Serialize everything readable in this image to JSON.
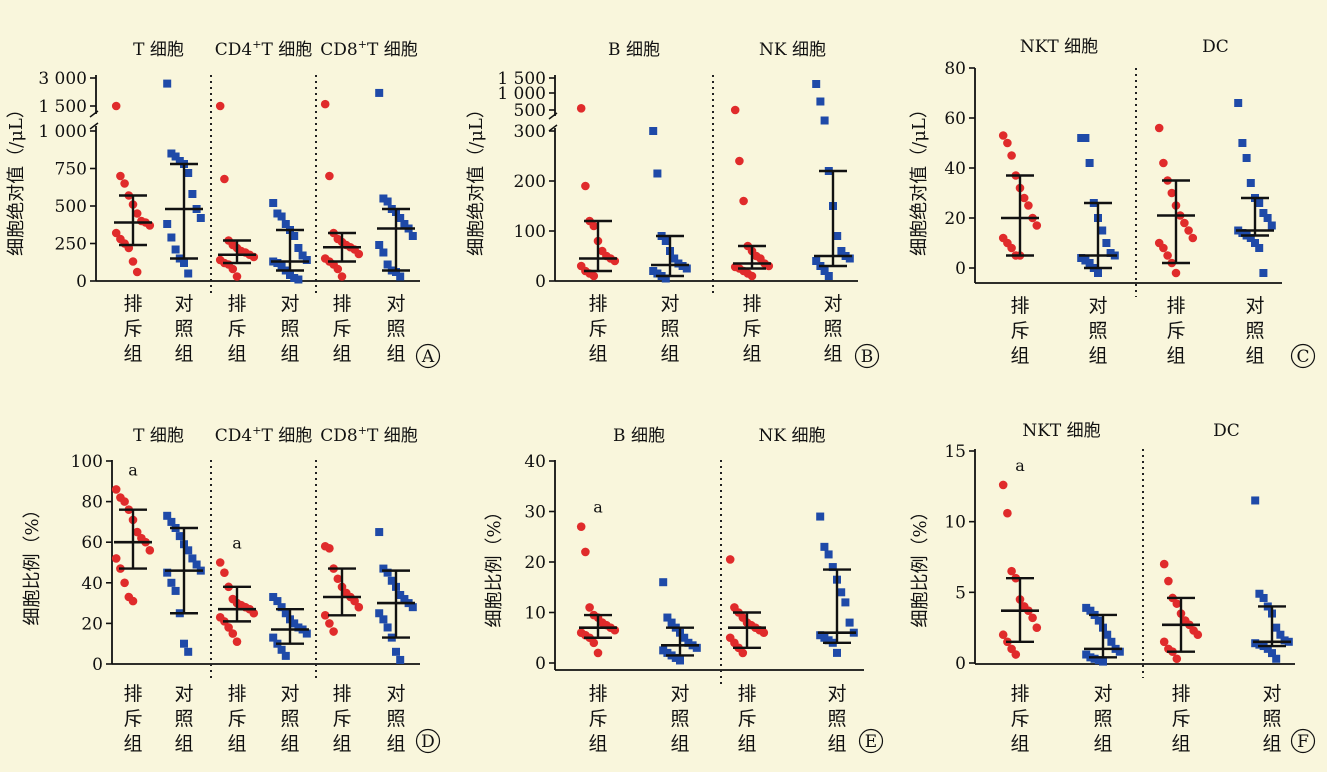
{
  "figure": {
    "background": "#f9f6dc",
    "colors": {
      "排斥组": "#e02b2b",
      "对照组": "#1f4aa8",
      "bars": "#111111"
    },
    "note": ""
  },
  "chart_data": [
    {
      "id": "A",
      "panel_label": "A",
      "type": "scatter",
      "ylabel": "细胞绝对值（/μL）",
      "axis_break": true,
      "yticks": [
        "0",
        "250",
        "500",
        "750",
        "1 000",
        "1 500",
        "3 000"
      ],
      "sections": [
        "T 细胞",
        "CD4⁺T 细胞",
        "CD8⁺T 细胞"
      ],
      "groups": [
        {
          "category": "排斥组",
          "section": "T 细胞",
          "median": 390,
          "q1": 240,
          "q3": 570,
          "points": [
            1500,
            700,
            650,
            570,
            510,
            450,
            400,
            390,
            370,
            320,
            280,
            250,
            220,
            130,
            60
          ]
        },
        {
          "category": "对照组",
          "section": "T 细胞",
          "median": 480,
          "q1": 150,
          "q3": 780,
          "points": [
            2700,
            850,
            830,
            800,
            780,
            720,
            580,
            480,
            420,
            380,
            290,
            210,
            150,
            120,
            50
          ]
        },
        {
          "category": "排斥组",
          "section": "CD4⁺T 细胞",
          "median": 175,
          "q1": 120,
          "q3": 270,
          "points": [
            1500,
            680,
            270,
            240,
            220,
            200,
            190,
            175,
            160,
            140,
            120,
            110,
            80,
            30
          ]
        },
        {
          "category": "对照组",
          "section": "CD4⁺T 细胞",
          "median": 130,
          "q1": 70,
          "q3": 340,
          "points": [
            520,
            450,
            430,
            380,
            340,
            300,
            220,
            170,
            140,
            130,
            120,
            100,
            70,
            40,
            20,
            10
          ]
        },
        {
          "category": "排斥组",
          "section": "CD8⁺T 细胞",
          "median": 225,
          "q1": 130,
          "q3": 320,
          "points": [
            1600,
            700,
            320,
            280,
            260,
            240,
            225,
            210,
            180,
            150,
            130,
            110,
            80,
            30
          ]
        },
        {
          "category": "对照组",
          "section": "CD8⁺T 细胞",
          "median": 350,
          "q1": 70,
          "q3": 480,
          "points": [
            2200,
            550,
            530,
            480,
            460,
            420,
            380,
            350,
            300,
            240,
            190,
            110,
            70,
            60,
            30
          ]
        }
      ]
    },
    {
      "id": "B",
      "panel_label": "B",
      "type": "scatter",
      "ylabel": "细胞绝对值（/μL）",
      "axis_break": true,
      "yticks": [
        "0",
        "100",
        "200",
        "300",
        "500",
        "1 000",
        "1 500"
      ],
      "sections": [
        "B 细胞",
        "NK 细胞"
      ],
      "groups": [
        {
          "category": "排斥组",
          "section": "B 细胞",
          "median": 45,
          "q1": 20,
          "q3": 120,
          "points": [
            550,
            190,
            120,
            110,
            80,
            60,
            50,
            45,
            40,
            30,
            20,
            15,
            10
          ]
        },
        {
          "category": "对照组",
          "section": "B 细胞",
          "median": 32,
          "q1": 10,
          "q3": 90,
          "points": [
            300,
            215,
            90,
            80,
            60,
            45,
            35,
            30,
            25,
            20,
            15,
            10,
            5
          ]
        },
        {
          "category": "排斥组",
          "section": "NK 细胞",
          "median": 35,
          "q1": 25,
          "q3": 70,
          "points": [
            500,
            240,
            160,
            70,
            60,
            50,
            45,
            35,
            30,
            28,
            25,
            20,
            15,
            10
          ]
        },
        {
          "category": "对照组",
          "section": "NK 细胞",
          "median": 50,
          "q1": 30,
          "q3": 220,
          "points": [
            1300,
            750,
            400,
            220,
            150,
            90,
            60,
            50,
            45,
            40,
            30,
            20,
            10
          ]
        }
      ]
    },
    {
      "id": "C",
      "panel_label": "C",
      "type": "scatter",
      "ylabel": "细胞绝对值（/μL）",
      "axis_break": false,
      "ylim": [
        -5,
        80
      ],
      "yticks": [
        "0",
        "20",
        "40",
        "60",
        "80"
      ],
      "sections": [
        "NKT 细胞",
        "DC"
      ],
      "groups": [
        {
          "category": "排斥组",
          "section": "NKT 细胞",
          "median": 20,
          "q1": 5,
          "q3": 37,
          "points": [
            53,
            50,
            45,
            37,
            32,
            28,
            25,
            20,
            17,
            12,
            10,
            8,
            5,
            5
          ]
        },
        {
          "category": "对照组",
          "section": "NKT 细胞",
          "median": 5,
          "q1": 0,
          "q3": 26,
          "points": [
            52,
            52,
            42,
            26,
            20,
            15,
            10,
            6,
            5,
            4,
            3,
            2,
            0,
            -2
          ]
        },
        {
          "category": "排斥组",
          "section": "DC",
          "median": 21,
          "q1": 2,
          "q3": 35,
          "points": [
            56,
            42,
            35,
            30,
            25,
            21,
            18,
            15,
            12,
            10,
            8,
            5,
            2,
            -2
          ]
        },
        {
          "category": "对照组",
          "section": "DC",
          "median": 15,
          "q1": 13,
          "q3": 28,
          "points": [
            66,
            50,
            44,
            34,
            28,
            26,
            22,
            20,
            17,
            15,
            14,
            13,
            12,
            10,
            8,
            -2
          ]
        }
      ]
    },
    {
      "id": "D",
      "panel_label": "D",
      "type": "scatter",
      "ylabel": "细胞比例（%）",
      "axis_break": false,
      "ylim": [
        0,
        100
      ],
      "yticks": [
        "0",
        "20",
        "40",
        "60",
        "80",
        "100"
      ],
      "sections": [
        "T 细胞",
        "CD4⁺T 细胞",
        "CD8⁺T 细胞"
      ],
      "annotations": [
        {
          "section": "T 细胞",
          "text": "a"
        },
        {
          "section": "CD4⁺T 细胞",
          "text": "a"
        }
      ],
      "groups": [
        {
          "category": "排斥组",
          "section": "T 细胞",
          "median": 60,
          "q1": 47,
          "q3": 76,
          "points": [
            86,
            82,
            80,
            76,
            71,
            65,
            62,
            60,
            56,
            52,
            47,
            40,
            33,
            31
          ]
        },
        {
          "category": "对照组",
          "section": "T 细胞",
          "median": 46,
          "q1": 25,
          "q3": 67,
          "points": [
            73,
            70,
            67,
            63,
            59,
            56,
            52,
            49,
            46,
            45,
            40,
            36,
            25,
            10,
            6
          ]
        },
        {
          "category": "排斥组",
          "section": "CD4⁺T 细胞",
          "median": 27,
          "q1": 21,
          "q3": 38,
          "points": [
            50,
            45,
            38,
            32,
            30,
            29,
            28,
            27,
            25,
            23,
            21,
            18,
            15,
            11
          ]
        },
        {
          "category": "对照组",
          "section": "CD4⁺T 细胞",
          "median": 17,
          "q1": 10,
          "q3": 27,
          "points": [
            33,
            31,
            28,
            25,
            22,
            20,
            18,
            17,
            15,
            13,
            10,
            7,
            4
          ]
        },
        {
          "category": "排斥组",
          "section": "CD8⁺T 细胞",
          "median": 33,
          "q1": 24,
          "q3": 47,
          "points": [
            58,
            57,
            47,
            42,
            38,
            35,
            33,
            31,
            28,
            24,
            20,
            16
          ]
        },
        {
          "category": "对照组",
          "section": "CD8⁺T 细胞",
          "median": 30,
          "q1": 13,
          "q3": 46,
          "points": [
            65,
            47,
            45,
            41,
            38,
            34,
            32,
            30,
            28,
            25,
            22,
            18,
            13,
            6,
            2
          ]
        }
      ]
    },
    {
      "id": "E",
      "panel_label": "E",
      "type": "scatter",
      "ylabel": "细胞比例（%）",
      "axis_break": false,
      "ylim": [
        0,
        40
      ],
      "yticks": [
        "0",
        "10",
        "20",
        "30",
        "40"
      ],
      "sections": [
        "B 细胞",
        "NK 细胞"
      ],
      "annotations": [
        {
          "section": "B 细胞",
          "text": "a"
        }
      ],
      "groups": [
        {
          "category": "排斥组",
          "section": "B 细胞",
          "median": 7,
          "q1": 5,
          "q3": 9.5,
          "points": [
            27,
            22,
            11,
            9.5,
            9,
            8,
            7.5,
            7,
            6.5,
            6,
            5.5,
            5,
            4,
            2
          ]
        },
        {
          "category": "对照组",
          "section": "B 细胞",
          "median": 3.5,
          "q1": 1.5,
          "q3": 7,
          "points": [
            16,
            9,
            8,
            7,
            6,
            5,
            4,
            3.5,
            3,
            2.5,
            2,
            1.5,
            1,
            0.5
          ]
        },
        {
          "category": "排斥组",
          "section": "NK 细胞",
          "median": 7,
          "q1": 3,
          "q3": 10,
          "points": [
            20.5,
            11,
            10,
            9,
            8,
            7.5,
            7,
            6.5,
            6,
            5,
            4,
            3,
            2
          ]
        },
        {
          "category": "对照组",
          "section": "NK 细胞",
          "median": 6,
          "q1": 4,
          "q3": 18.5,
          "points": [
            29,
            23,
            21.5,
            19,
            16.5,
            14,
            12,
            8,
            6,
            5.5,
            5,
            4.5,
            4,
            2
          ]
        }
      ]
    },
    {
      "id": "F",
      "panel_label": "F",
      "type": "scatter",
      "ylabel": "细胞比例（%）",
      "axis_break": false,
      "ylim": [
        0,
        15
      ],
      "yticks": [
        "0",
        "5",
        "10",
        "15"
      ],
      "sections": [
        "NKT 细胞",
        "DC"
      ],
      "annotations": [
        {
          "section": "NKT 细胞",
          "text": "a"
        }
      ],
      "groups": [
        {
          "category": "排斥组",
          "section": "NKT 细胞",
          "median": 3.7,
          "q1": 1.5,
          "q3": 6,
          "points": [
            12.6,
            10.6,
            6.5,
            6,
            4.5,
            4,
            3.7,
            3.2,
            2.5,
            2,
            1.5,
            1,
            0.6
          ]
        },
        {
          "category": "对照组",
          "section": "NKT 细胞",
          "median": 1,
          "q1": 0.4,
          "q3": 3.4,
          "points": [
            3.9,
            3.7,
            3.4,
            3,
            2.5,
            2,
            1.5,
            1,
            0.8,
            0.6,
            0.4,
            0.3,
            0.2,
            0.1
          ]
        },
        {
          "category": "排斥组",
          "section": "DC",
          "median": 2.7,
          "q1": 0.8,
          "q3": 4.6,
          "points": [
            7,
            5.8,
            4.6,
            4.2,
            3.5,
            3,
            2.7,
            2.3,
            2,
            1.5,
            1,
            0.8,
            0.3
          ]
        },
        {
          "category": "对照组",
          "section": "DC",
          "median": 1.5,
          "q1": 1.2,
          "q3": 4,
          "points": [
            11.5,
            4.9,
            4.6,
            4,
            3.5,
            2.5,
            2,
            1.6,
            1.5,
            1.4,
            1.3,
            1.2,
            1,
            0.7,
            0.3
          ]
        }
      ]
    }
  ]
}
